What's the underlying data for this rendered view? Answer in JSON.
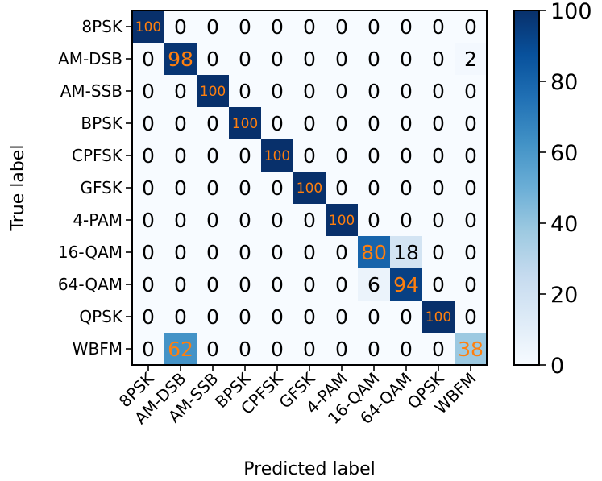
{
  "chart_data": {
    "type": "heatmap",
    "xlabel": "Predicted label",
    "ylabel": "True label",
    "row_labels": [
      "8PSK",
      "AM-DSB",
      "AM-SSB",
      "BPSK",
      "CPFSK",
      "GFSK",
      "4-PAM",
      "16-QAM",
      "64-QAM",
      "QPSK",
      "WBFM"
    ],
    "col_labels": [
      "8PSK",
      "AM-DSB",
      "AM-SSB",
      "BPSK",
      "CPFSK",
      "GFSK",
      "4-PAM",
      "16-QAM",
      "64-QAM",
      "QPSK",
      "WBFM"
    ],
    "values": [
      [
        100,
        0,
        0,
        0,
        0,
        0,
        0,
        0,
        0,
        0,
        0
      ],
      [
        0,
        98,
        0,
        0,
        0,
        0,
        0,
        0,
        0,
        0,
        2
      ],
      [
        0,
        0,
        100,
        0,
        0,
        0,
        0,
        0,
        0,
        0,
        0
      ],
      [
        0,
        0,
        0,
        100,
        0,
        0,
        0,
        0,
        0,
        0,
        0
      ],
      [
        0,
        0,
        0,
        0,
        100,
        0,
        0,
        0,
        0,
        0,
        0
      ],
      [
        0,
        0,
        0,
        0,
        0,
        100,
        0,
        0,
        0,
        0,
        0
      ],
      [
        0,
        0,
        0,
        0,
        0,
        0,
        100,
        0,
        0,
        0,
        0
      ],
      [
        0,
        0,
        0,
        0,
        0,
        0,
        0,
        80,
        18,
        0,
        0
      ],
      [
        0,
        0,
        0,
        0,
        0,
        0,
        0,
        6,
        94,
        0,
        0
      ],
      [
        0,
        0,
        0,
        0,
        0,
        0,
        0,
        0,
        0,
        100,
        0
      ],
      [
        0,
        62,
        0,
        0,
        0,
        0,
        0,
        0,
        0,
        0,
        38
      ]
    ],
    "colorbar": {
      "min": 0,
      "max": 100,
      "ticks": [
        0,
        20,
        40,
        60,
        80,
        100
      ]
    },
    "colormap": "Blues",
    "annotation_color_on_dark": "#ff7f0e",
    "annotation_color_on_light": "#000000"
  }
}
